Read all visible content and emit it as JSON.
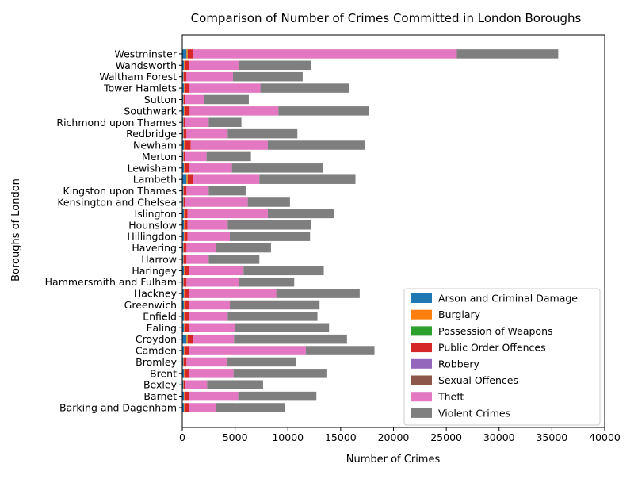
{
  "chart_data": {
    "type": "bar",
    "orientation": "horizontal",
    "stacked": true,
    "title": "Comparison of Number of Crimes Committed in London Boroughs",
    "xlabel": "Number of Crimes",
    "ylabel": "Boroughs of London",
    "xlim": [
      0,
      40000
    ],
    "x_ticks": [
      0,
      5000,
      10000,
      15000,
      20000,
      25000,
      30000,
      35000,
      40000
    ],
    "grid": false,
    "legend_position": "lower-right",
    "categories": [
      "Barking and Dagenham",
      "Barnet",
      "Bexley",
      "Brent",
      "Bromley",
      "Camden",
      "Croydon",
      "Ealing",
      "Enfield",
      "Greenwich",
      "Hackney",
      "Hammersmith and Fulham",
      "Haringey",
      "Harrow",
      "Havering",
      "Hillingdon",
      "Hounslow",
      "Islington",
      "Kensington and Chelsea",
      "Kingston upon Thames",
      "Lambeth",
      "Lewisham",
      "Merton",
      "Newham",
      "Redbridge",
      "Richmond upon Thames",
      "Southwark",
      "Sutton",
      "Tower Hamlets",
      "Waltham Forest",
      "Wandsworth",
      "Westminster"
    ],
    "series": [
      {
        "name": "Arson and Criminal Damage",
        "color": "#1f77b4",
        "values": [
          150,
          150,
          100,
          150,
          100,
          150,
          400,
          150,
          150,
          150,
          150,
          100,
          150,
          100,
          100,
          150,
          150,
          150,
          100,
          100,
          400,
          150,
          100,
          150,
          100,
          100,
          150,
          100,
          150,
          100,
          150,
          400
        ]
      },
      {
        "name": "Burglary",
        "color": "#ff7f0e",
        "values": [
          50,
          50,
          30,
          50,
          30,
          50,
          100,
          50,
          50,
          50,
          50,
          30,
          50,
          30,
          30,
          50,
          50,
          50,
          30,
          30,
          100,
          50,
          30,
          50,
          30,
          30,
          50,
          30,
          50,
          30,
          50,
          100
        ]
      },
      {
        "name": "Possession of Weapons",
        "color": "#2ca02c",
        "values": [
          10,
          10,
          5,
          10,
          5,
          10,
          20,
          10,
          10,
          10,
          10,
          5,
          10,
          5,
          5,
          10,
          10,
          10,
          5,
          5,
          20,
          10,
          5,
          10,
          5,
          5,
          10,
          5,
          10,
          5,
          10,
          20
        ]
      },
      {
        "name": "Public Order Offences",
        "color": "#d62728",
        "values": [
          390,
          390,
          165,
          390,
          265,
          390,
          480,
          390,
          390,
          390,
          390,
          265,
          390,
          265,
          265,
          290,
          290,
          290,
          165,
          265,
          480,
          390,
          165,
          590,
          265,
          165,
          490,
          165,
          390,
          265,
          390,
          480
        ]
      },
      {
        "name": "Robbery",
        "color": "#9467bd",
        "values": [
          0,
          0,
          0,
          0,
          0,
          0,
          0,
          0,
          0,
          0,
          0,
          0,
          0,
          0,
          0,
          0,
          0,
          0,
          0,
          0,
          0,
          0,
          0,
          0,
          0,
          0,
          0,
          0,
          0,
          0,
          0,
          0
        ]
      },
      {
        "name": "Sexual Offences",
        "color": "#8c564b",
        "values": [
          0,
          0,
          0,
          0,
          0,
          0,
          0,
          0,
          0,
          0,
          0,
          0,
          0,
          0,
          0,
          0,
          0,
          0,
          0,
          0,
          0,
          0,
          0,
          0,
          0,
          0,
          0,
          0,
          0,
          0,
          0,
          0
        ]
      },
      {
        "name": "Theft",
        "color": "#e377c2",
        "values": [
          2600,
          4700,
          2050,
          4250,
          3800,
          11100,
          3900,
          4400,
          3700,
          3900,
          8300,
          5000,
          5200,
          2100,
          2800,
          4000,
          3800,
          7600,
          5900,
          2100,
          6300,
          4100,
          2000,
          7300,
          3900,
          2200,
          8400,
          1800,
          6800,
          4400,
          4800,
          25000
        ]
      },
      {
        "name": "Violent Crimes",
        "color": "#7f7f7f",
        "values": [
          6500,
          7400,
          5300,
          8800,
          6600,
          6500,
          10700,
          8900,
          8500,
          8500,
          7900,
          5200,
          7600,
          4800,
          5200,
          7600,
          7900,
          6300,
          4000,
          3500,
          9100,
          8600,
          4200,
          9200,
          6600,
          3100,
          8600,
          4200,
          8400,
          6600,
          6800,
          9600
        ]
      }
    ]
  }
}
